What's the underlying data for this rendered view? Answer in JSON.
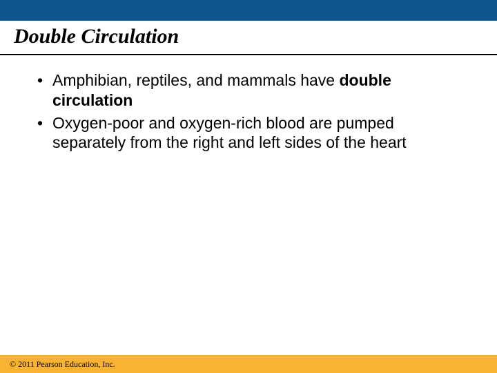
{
  "colors": {
    "top_bar": "#0d5690",
    "footer_bar": "#f7b331",
    "background": "#ffffff",
    "text": "#000000"
  },
  "title": "Double Circulation",
  "bullets": [
    {
      "pre": "Amphibian, reptiles, and mammals have ",
      "bold": "double circulation",
      "post": ""
    },
    {
      "pre": "Oxygen-poor and oxygen-rich blood are pumped separately from the right and left sides of the heart",
      "bold": "",
      "post": ""
    }
  ],
  "copyright": "© 2011 Pearson Education, Inc."
}
